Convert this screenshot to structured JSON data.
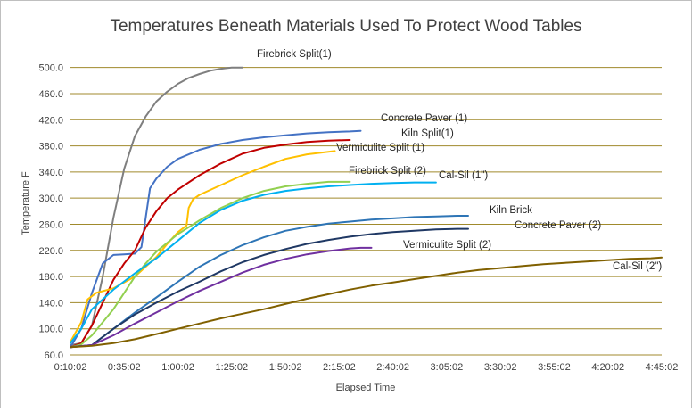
{
  "chart_data": {
    "type": "line",
    "title": "Temperatures Beneath Materials Used To Protect Wood Tables",
    "xlabel": "Elapsed Time",
    "ylabel": "Temperature F",
    "x_tick_labels": [
      "0:10:02",
      "0:35:02",
      "1:00:02",
      "1:25:02",
      "1:50:02",
      "2:15:02",
      "2:40:02",
      "3:05:02",
      "3:30:02",
      "3:55:02",
      "4:20:02",
      "4:45:02"
    ],
    "x_units": "minutes elapsed",
    "xlim": [
      10,
      285
    ],
    "ylim": [
      60,
      520
    ],
    "y_ticks": [
      60,
      100,
      140,
      180,
      220,
      260,
      300,
      340,
      380,
      420,
      460,
      500
    ],
    "y_tick_labels": [
      "60.0",
      "100.0",
      "140.0",
      "180.0",
      "220.0",
      "260.0",
      "300.0",
      "340.0",
      "380.0",
      "420.0",
      "460.0",
      "500.0"
    ],
    "grid": "horizontal",
    "gridline_color": "#a08a2c",
    "legend": "none (labels at line ends)",
    "series": [
      {
        "name": "Firebrick Split(1)",
        "color": "#7f7f7f",
        "points": [
          [
            10,
            75
          ],
          [
            15,
            78
          ],
          [
            20,
            105
          ],
          [
            25,
            180
          ],
          [
            30,
            270
          ],
          [
            35,
            345
          ],
          [
            40,
            395
          ],
          [
            45,
            425
          ],
          [
            50,
            448
          ],
          [
            55,
            463
          ],
          [
            60,
            475
          ],
          [
            65,
            484
          ],
          [
            70,
            490
          ],
          [
            75,
            495
          ],
          [
            80,
            498
          ],
          [
            85,
            500
          ],
          [
            90,
            500
          ]
        ]
      },
      {
        "name": "Concrete Paver (1)",
        "color": "#4472c4",
        "points": [
          [
            10,
            72
          ],
          [
            15,
            100
          ],
          [
            20,
            155
          ],
          [
            25,
            200
          ],
          [
            30,
            213
          ],
          [
            35,
            214
          ],
          [
            40,
            215
          ],
          [
            43,
            225
          ],
          [
            45,
            270
          ],
          [
            47,
            315
          ],
          [
            50,
            330
          ],
          [
            55,
            348
          ],
          [
            60,
            360
          ],
          [
            70,
            374
          ],
          [
            80,
            383
          ],
          [
            90,
            389
          ],
          [
            100,
            393
          ],
          [
            110,
            396
          ],
          [
            120,
            399
          ],
          [
            130,
            401
          ],
          [
            140,
            402
          ],
          [
            145,
            403
          ]
        ]
      },
      {
        "name": "Kiln Split(1)",
        "color": "#c00000",
        "points": [
          [
            10,
            72
          ],
          [
            15,
            78
          ],
          [
            20,
            105
          ],
          [
            25,
            140
          ],
          [
            30,
            175
          ],
          [
            35,
            200
          ],
          [
            40,
            220
          ],
          [
            45,
            255
          ],
          [
            50,
            280
          ],
          [
            55,
            300
          ],
          [
            60,
            313
          ],
          [
            70,
            335
          ],
          [
            80,
            353
          ],
          [
            90,
            368
          ],
          [
            100,
            377
          ],
          [
            110,
            382
          ],
          [
            120,
            386
          ],
          [
            130,
            388
          ],
          [
            140,
            389
          ]
        ]
      },
      {
        "name": "Vermiculite Split (1)",
        "color": "#ffc000",
        "points": [
          [
            10,
            80
          ],
          [
            15,
            110
          ],
          [
            18,
            145
          ],
          [
            22,
            155
          ],
          [
            30,
            162
          ],
          [
            40,
            180
          ],
          [
            50,
            210
          ],
          [
            55,
            230
          ],
          [
            60,
            248
          ],
          [
            64,
            258
          ],
          [
            65,
            285
          ],
          [
            67,
            298
          ],
          [
            70,
            305
          ],
          [
            80,
            320
          ],
          [
            90,
            335
          ],
          [
            100,
            348
          ],
          [
            110,
            360
          ],
          [
            120,
            367
          ],
          [
            130,
            371
          ],
          [
            133,
            372
          ]
        ]
      },
      {
        "name": "Firebrick Split (2)",
        "color": "#92d050",
        "points": [
          [
            10,
            72
          ],
          [
            15,
            76
          ],
          [
            20,
            90
          ],
          [
            25,
            110
          ],
          [
            30,
            130
          ],
          [
            35,
            155
          ],
          [
            40,
            180
          ],
          [
            45,
            200
          ],
          [
            50,
            218
          ],
          [
            60,
            245
          ],
          [
            70,
            266
          ],
          [
            80,
            285
          ],
          [
            90,
            300
          ],
          [
            100,
            311
          ],
          [
            110,
            318
          ],
          [
            120,
            322
          ],
          [
            130,
            325
          ],
          [
            140,
            325
          ]
        ]
      },
      {
        "name": "Cal-Sil (1\")",
        "color": "#00b0f0",
        "points": [
          [
            10,
            78
          ],
          [
            15,
            100
          ],
          [
            20,
            130
          ],
          [
            30,
            160
          ],
          [
            40,
            185
          ],
          [
            50,
            208
          ],
          [
            60,
            235
          ],
          [
            70,
            262
          ],
          [
            80,
            282
          ],
          [
            90,
            296
          ],
          [
            100,
            305
          ],
          [
            110,
            311
          ],
          [
            120,
            315
          ],
          [
            130,
            318
          ],
          [
            140,
            320
          ],
          [
            150,
            322
          ],
          [
            160,
            323
          ],
          [
            170,
            324
          ],
          [
            180,
            324
          ]
        ]
      },
      {
        "name": "Kiln Brick",
        "color": "#2e75b6",
        "points": [
          [
            10,
            72
          ],
          [
            20,
            75
          ],
          [
            30,
            100
          ],
          [
            40,
            125
          ],
          [
            50,
            148
          ],
          [
            60,
            172
          ],
          [
            70,
            195
          ],
          [
            80,
            213
          ],
          [
            90,
            228
          ],
          [
            100,
            240
          ],
          [
            110,
            250
          ],
          [
            120,
            256
          ],
          [
            130,
            261
          ],
          [
            140,
            264
          ],
          [
            150,
            267
          ],
          [
            160,
            269
          ],
          [
            170,
            271
          ],
          [
            180,
            272
          ],
          [
            190,
            273
          ],
          [
            195,
            273
          ]
        ]
      },
      {
        "name": "Concrete Paver (2)",
        "color": "#1f3864",
        "points": [
          [
            10,
            72
          ],
          [
            20,
            75
          ],
          [
            30,
            100
          ],
          [
            40,
            122
          ],
          [
            50,
            140
          ],
          [
            60,
            157
          ],
          [
            70,
            172
          ],
          [
            80,
            188
          ],
          [
            90,
            202
          ],
          [
            100,
            213
          ],
          [
            110,
            222
          ],
          [
            120,
            230
          ],
          [
            130,
            236
          ],
          [
            140,
            241
          ],
          [
            150,
            245
          ],
          [
            160,
            248
          ],
          [
            170,
            250
          ],
          [
            180,
            252
          ],
          [
            190,
            253
          ],
          [
            195,
            253
          ]
        ]
      },
      {
        "name": "Vermiculite Split (2)",
        "color": "#7030a0",
        "points": [
          [
            10,
            72
          ],
          [
            20,
            75
          ],
          [
            30,
            90
          ],
          [
            40,
            108
          ],
          [
            50,
            125
          ],
          [
            60,
            142
          ],
          [
            70,
            158
          ],
          [
            80,
            172
          ],
          [
            90,
            186
          ],
          [
            100,
            198
          ],
          [
            110,
            207
          ],
          [
            120,
            214
          ],
          [
            130,
            219
          ],
          [
            140,
            223
          ],
          [
            145,
            224
          ],
          [
            150,
            224
          ]
        ]
      },
      {
        "name": "Cal-Sil (2\")",
        "color": "#806000",
        "points": [
          [
            10,
            72
          ],
          [
            20,
            74
          ],
          [
            30,
            78
          ],
          [
            40,
            84
          ],
          [
            50,
            92
          ],
          [
            60,
            100
          ],
          [
            70,
            108
          ],
          [
            80,
            116
          ],
          [
            90,
            123
          ],
          [
            100,
            130
          ],
          [
            110,
            138
          ],
          [
            120,
            146
          ],
          [
            130,
            153
          ],
          [
            140,
            160
          ],
          [
            150,
            166
          ],
          [
            160,
            171
          ],
          [
            170,
            176
          ],
          [
            180,
            181
          ],
          [
            190,
            186
          ],
          [
            200,
            190
          ],
          [
            210,
            193
          ],
          [
            220,
            196
          ],
          [
            230,
            199
          ],
          [
            240,
            201
          ],
          [
            250,
            203
          ],
          [
            260,
            205
          ],
          [
            270,
            207
          ],
          [
            280,
            208
          ],
          [
            285,
            209
          ]
        ]
      }
    ]
  }
}
